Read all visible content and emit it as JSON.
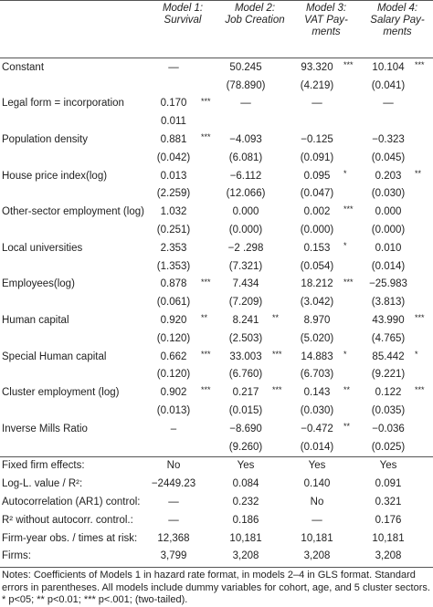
{
  "header": {
    "columns": [
      [
        "Model 1:",
        "Survival"
      ],
      [
        "Model 2:",
        "Job Creation"
      ],
      [
        "Model 3:",
        "VAT Pay-",
        "ments"
      ],
      [
        "Model 4:",
        "Salary Pay-",
        "ments"
      ]
    ]
  },
  "rows": [
    {
      "label": "Constant",
      "cells": [
        {
          "value": "—"
        },
        {
          "value": "50.245"
        },
        {
          "value": "93.320",
          "stars": "***"
        },
        {
          "value": "10.104",
          "stars": "***"
        }
      ],
      "se": [
        null,
        "(78.890)",
        "(4.219)",
        "(0.041)"
      ]
    },
    {
      "label": "Legal form = incorporation",
      "cells": [
        {
          "value": "0.170",
          "stars": "***"
        },
        {
          "value": "—"
        },
        {
          "value": "—"
        },
        {
          "value": "—"
        }
      ],
      "se": [
        "0.011",
        null,
        null,
        null
      ]
    },
    {
      "label": "Population density",
      "cells": [
        {
          "value": "0.881",
          "stars": "***"
        },
        {
          "value": "−4.093"
        },
        {
          "value": "−0.125"
        },
        {
          "value": "−0.323"
        }
      ],
      "se": [
        "(0.042)",
        "(6.081)",
        "(0.091)",
        "(0.045)"
      ]
    },
    {
      "label": "House price index(log)",
      "cells": [
        {
          "value": "0.013"
        },
        {
          "value": "−6.112"
        },
        {
          "value": "0.095",
          "stars": "*"
        },
        {
          "value": "0.203",
          "stars": "**"
        }
      ],
      "se": [
        "(2.259)",
        "(12.066)",
        "(0.047)",
        "(0.030)"
      ]
    },
    {
      "label": "Other-sector employment (log)",
      "cells": [
        {
          "value": "1.032"
        },
        {
          "value": "0.000"
        },
        {
          "value": "0.002",
          "stars": "***"
        },
        {
          "value": "0.000"
        }
      ],
      "se": [
        "(0.251)",
        "(0.000)",
        "(0.000)",
        "(0.000)"
      ]
    },
    {
      "label": "Local universities",
      "cells": [
        {
          "value": "2.353"
        },
        {
          "value": "−2 .298"
        },
        {
          "value": "0.153",
          "stars": "*"
        },
        {
          "value": "0.010"
        }
      ],
      "se": [
        "(1.353)",
        "(7.321)",
        "(0.054)",
        "(0.014)"
      ]
    },
    {
      "label": "Employees(log)",
      "cells": [
        {
          "value": "0.878",
          "stars": "***"
        },
        {
          "value": "7.434"
        },
        {
          "value": "18.212",
          "stars": "***"
        },
        {
          "value": "−25.983"
        }
      ],
      "se": [
        "(0.061)",
        "(7.209)",
        "(3.042)",
        "(3.813)"
      ]
    },
    {
      "label": "Human capital",
      "cells": [
        {
          "value": "0.920",
          "stars": "**"
        },
        {
          "value": "8.241",
          "stars": "**"
        },
        {
          "value": "8.970"
        },
        {
          "value": "43.990",
          "stars": "***"
        }
      ],
      "se": [
        "(0.120)",
        "(2.503)",
        "(5.020)",
        "(4.765)"
      ]
    },
    {
      "label": "Special Human capital",
      "cells": [
        {
          "value": "0.662",
          "stars": "***"
        },
        {
          "value": "33.003",
          "stars": "***"
        },
        {
          "value": "14.883",
          "stars": "*"
        },
        {
          "value": "85.442",
          "stars": "*"
        }
      ],
      "se": [
        "(0.120)",
        "(6.760)",
        "(6.703)",
        "(9.221)"
      ]
    },
    {
      "label": "Cluster employment (log)",
      "cells": [
        {
          "value": "0.902",
          "stars": "***"
        },
        {
          "value": "0.217",
          "stars": "***"
        },
        {
          "value": "0.143",
          "stars": "**"
        },
        {
          "value": "0.122",
          "stars": "***"
        }
      ],
      "se": [
        "(0.013)",
        "(0.015)",
        "(0.030)",
        "(0.035)"
      ]
    },
    {
      "label": "Inverse Mills Ratio",
      "cells": [
        {
          "value": "–"
        },
        {
          "value": "−8.690"
        },
        {
          "value": "−0.472",
          "stars": "**"
        },
        {
          "value": "−0.036"
        }
      ],
      "se": [
        null,
        "(9.260)",
        "(0.014)",
        "(0.025)"
      ]
    }
  ],
  "summary": [
    {
      "label": "Fixed firm effects:",
      "cells": [
        "No",
        "Yes",
        "Yes",
        "Yes"
      ]
    },
    {
      "label": "Log-L. value / R²:",
      "cells": [
        "−2449.23",
        "0.084",
        "0.140",
        "0.091"
      ]
    },
    {
      "label": "Autocorrelation (AR1) control:",
      "cells": [
        "—",
        "0.232",
        "No",
        "0.321"
      ]
    },
    {
      "label": "R² without autocorr. control.:",
      "cells": [
        "—",
        "0.186",
        "—",
        "0.176"
      ]
    },
    {
      "label": "Firm-year obs. / times at risk:",
      "cells": [
        "12,368",
        "10,181",
        "10,181",
        "10,181"
      ]
    },
    {
      "label": "Firms:",
      "cells": [
        "3,799",
        "3,208",
        "3,208",
        "3,208"
      ]
    }
  ],
  "notes": [
    "Notes: Coefficients of Models 1 in hazard rate format, in models 2–4 in GLS format. Standard",
    "errors in parentheses. All models include dummy variables for cohort, age, and 5 cluster sectors.",
    "* p<05; ** p<0.01; *** p<.001; (two-tailed)."
  ]
}
